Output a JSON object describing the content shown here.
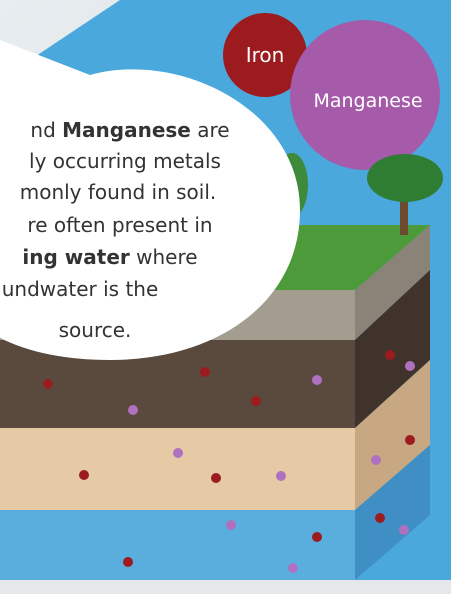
{
  "labels": {
    "iron": "Iron",
    "manganese": "Manganese"
  },
  "bubble": {
    "lines": [
      [
        "nd ",
        "Manganese",
        " are"
      ],
      [
        "ly occurring metals"
      ],
      [
        "monly found in soil."
      ],
      [
        "re often present in"
      ],
      [
        "ing water",
        " where"
      ],
      [
        "undwater is the"
      ],
      [
        "source."
      ]
    ]
  }
}
